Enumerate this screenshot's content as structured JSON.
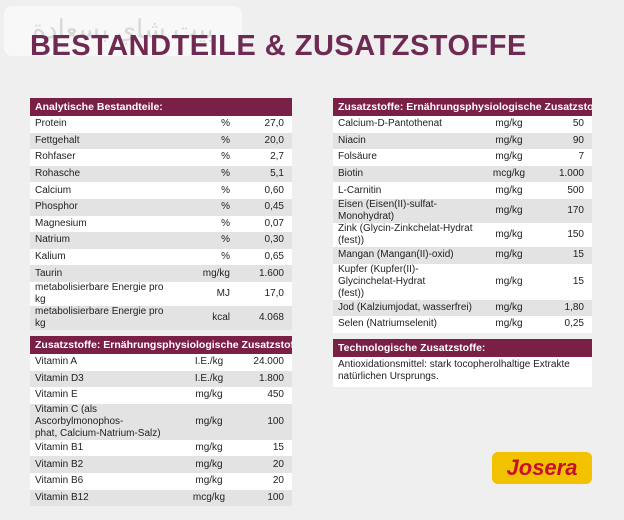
{
  "watermark": "بيت شاي بسعادة",
  "title": "BESTANDTEILE & ZUSATZSTOFFE",
  "left": [
    {
      "header": "Analytische Bestandteile:",
      "rows": [
        [
          "Protein",
          "%",
          "27,0"
        ],
        [
          "Fettgehalt",
          "%",
          "20,0"
        ],
        [
          "Rohfaser",
          "%",
          "2,7"
        ],
        [
          "Rohasche",
          "%",
          "5,1"
        ],
        [
          "Calcium",
          "%",
          "0,60"
        ],
        [
          "Phosphor",
          "%",
          "0,45"
        ],
        [
          "Magnesium",
          "%",
          "0,07"
        ],
        [
          "Natrium",
          "%",
          "0,30"
        ],
        [
          "Kalium",
          "%",
          "0,65"
        ],
        [
          "Taurin",
          "mg/kg",
          "1.600"
        ],
        [
          "metabolisierbare Energie pro kg",
          "MJ",
          "17,0"
        ],
        [
          "metabolisierbare Energie pro kg",
          "kcal",
          "4.068"
        ]
      ]
    },
    {
      "header": "Zusatzstoffe: Ernährungsphysiologische Zusatzstoffe je kg:",
      "rows": [
        [
          "Vitamin A",
          "I.E./kg",
          "24.000"
        ],
        [
          "Vitamin D3",
          "I.E./kg",
          "1.800"
        ],
        [
          "Vitamin E",
          "mg/kg",
          "450"
        ],
        [
          "Vitamin C (als Ascorbylmonophos-\nphat, Calcium-Natrium-Salz)",
          "mg/kg",
          "100"
        ],
        [
          "Vitamin B1",
          "mg/kg",
          "15"
        ],
        [
          "Vitamin B2",
          "mg/kg",
          "20"
        ],
        [
          "Vitamin B6",
          "mg/kg",
          "20"
        ],
        [
          "Vitamin B12",
          "mcg/kg",
          "100"
        ]
      ]
    }
  ],
  "right": [
    {
      "header": "Zusatzstoffe: Ernährungsphysiologische Zusatzstoffe je kg:",
      "rows": [
        [
          "Calcium-D-Pantothenat",
          "mg/kg",
          "50"
        ],
        [
          "Niacin",
          "mg/kg",
          "90"
        ],
        [
          "Folsäure",
          "mg/kg",
          "7"
        ],
        [
          "Biotin",
          "mcg/kg",
          "1.000"
        ],
        [
          "L-Carnitin",
          "mg/kg",
          "500"
        ],
        [
          "Eisen (Eisen(II)-sulfat-Monohydrat)",
          "mg/kg",
          "170"
        ],
        [
          "Zink (Glycin-Zinkchelat-Hydrat (fest))",
          "mg/kg",
          "150"
        ],
        [
          "Mangan (Mangan(II)-oxid)",
          "mg/kg",
          "15"
        ],
        [
          "Kupfer (Kupfer(II)-Glycinchelat-Hydrat\n(fest))",
          "mg/kg",
          "15"
        ],
        [
          "Jod (Kalziumjodat, wasserfrei)",
          "mg/kg",
          "1,80"
        ],
        [
          "Selen (Natriumselenit)",
          "mg/kg",
          "0,25"
        ]
      ]
    },
    {
      "header": "Technologische Zusatzstoffe:",
      "text": "Antioxidationsmittel: stark tocopherolhaltige Extrakte natürlichen Ursprungs."
    }
  ],
  "logo": "Josera"
}
